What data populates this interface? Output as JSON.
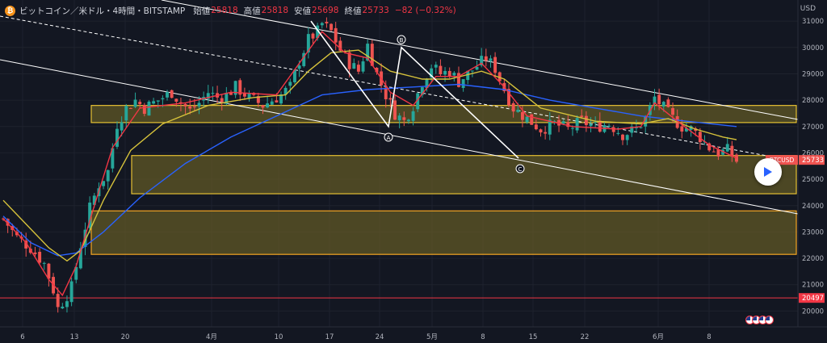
{
  "header": {
    "coin_symbol": "₿",
    "symbol": "ビットコイン／米ドル・4時間・BITSTAMP",
    "open_label": "始値",
    "open": "25818",
    "high_label": "高値",
    "high": "25818",
    "low_label": "安値",
    "low": "25698",
    "close_label": "終値",
    "close": "25733",
    "change": "−82 (−0.32%)"
  },
  "axis_unit": "USD",
  "colors": {
    "background": "#131722",
    "bullish": "#26a69a",
    "bearish": "#ef5350",
    "ma_fast": "#f23645",
    "ma_mid": "#d6c23b",
    "ma_slow": "#2962ff",
    "zone_fill": "#6b6127",
    "zone_border": "#e5c033",
    "zone_low_border": "#f5a623",
    "support_line": "#f23645",
    "trend_lines": "#ffffff"
  },
  "chart_data": {
    "type": "candlestick",
    "x_tick_labels": [
      "6",
      "13",
      "20",
      "4月",
      "10",
      "17",
      "24",
      "5月",
      "8",
      "15",
      "22",
      "6月",
      "8"
    ],
    "y_ticks": [
      20000,
      21000,
      22000,
      23000,
      24000,
      25000,
      26000,
      27000,
      28000,
      29000,
      30000,
      31000
    ],
    "ylim": [
      19400,
      31800
    ],
    "price_label": "25733",
    "symbol_tag": "BTCUSD",
    "support_label": "20497",
    "support_level": 20497,
    "wave_labels": [
      "A",
      "B",
      "C"
    ],
    "zones": [
      {
        "low": 27150,
        "high": 27800
      },
      {
        "low": 24450,
        "high": 25900
      },
      {
        "low": 22150,
        "high": 23800
      }
    ],
    "close_path": [
      [
        0,
        23500
      ],
      [
        3,
        22800
      ],
      [
        6,
        22400
      ],
      [
        9,
        21800
      ],
      [
        11,
        20800
      ],
      [
        12,
        20100
      ],
      [
        14,
        20600
      ],
      [
        15,
        20900
      ],
      [
        17,
        22500
      ],
      [
        19,
        23900
      ],
      [
        21,
        24800
      ],
      [
        23,
        25300
      ],
      [
        25,
        27100
      ],
      [
        27,
        27700
      ],
      [
        29,
        28000
      ],
      [
        31,
        27700
      ],
      [
        33,
        27900
      ],
      [
        35,
        28100
      ],
      [
        37,
        28300
      ],
      [
        39,
        27900
      ],
      [
        41,
        27600
      ],
      [
        43,
        27900
      ],
      [
        45,
        28300
      ],
      [
        47,
        28100
      ],
      [
        49,
        28200
      ],
      [
        51,
        28500
      ],
      [
        54,
        28100
      ],
      [
        57,
        27800
      ],
      [
        61,
        28200
      ],
      [
        63,
        28500
      ],
      [
        65,
        29500
      ],
      [
        67,
        30300
      ],
      [
        69,
        30600
      ],
      [
        70,
        30900
      ],
      [
        72,
        30600
      ],
      [
        74,
        29900
      ],
      [
        76,
        29400
      ],
      [
        78,
        29100
      ],
      [
        80,
        30100
      ],
      [
        82,
        29000
      ],
      [
        84,
        28200
      ],
      [
        86,
        27500
      ],
      [
        88,
        27200
      ],
      [
        90,
        27800
      ],
      [
        92,
        28700
      ],
      [
        94,
        29300
      ],
      [
        96,
        29000
      ],
      [
        98,
        29100
      ],
      [
        100,
        28700
      ],
      [
        102,
        29000
      ],
      [
        104,
        29300
      ],
      [
        106,
        29600
      ],
      [
        108,
        29200
      ],
      [
        110,
        28400
      ],
      [
        112,
        27700
      ],
      [
        115,
        27300
      ],
      [
        118,
        26900
      ],
      [
        121,
        27100
      ],
      [
        124,
        26900
      ],
      [
        127,
        27200
      ],
      [
        130,
        27000
      ],
      [
        133,
        27100
      ],
      [
        136,
        26700
      ],
      [
        139,
        26900
      ],
      [
        141,
        27300
      ],
      [
        143,
        28100
      ],
      [
        145,
        27700
      ],
      [
        147,
        27300
      ],
      [
        149,
        27000
      ],
      [
        151,
        26900
      ],
      [
        153,
        26600
      ],
      [
        155,
        26200
      ],
      [
        157,
        26000
      ],
      [
        159,
        26100
      ],
      [
        161,
        25700
      ]
    ],
    "ma_fast": [
      [
        0,
        23500
      ],
      [
        5,
        22600
      ],
      [
        10,
        21200
      ],
      [
        13,
        20600
      ],
      [
        16,
        21700
      ],
      [
        20,
        24000
      ],
      [
        24,
        26200
      ],
      [
        30,
        27700
      ],
      [
        40,
        27900
      ],
      [
        50,
        28300
      ],
      [
        60,
        28200
      ],
      [
        65,
        29400
      ],
      [
        70,
        30600
      ],
      [
        75,
        29800
      ],
      [
        80,
        29600
      ],
      [
        85,
        28300
      ],
      [
        90,
        27800
      ],
      [
        95,
        28900
      ],
      [
        100,
        28900
      ],
      [
        105,
        29400
      ],
      [
        110,
        28500
      ],
      [
        115,
        27400
      ],
      [
        125,
        27000
      ],
      [
        135,
        26900
      ],
      [
        140,
        27000
      ],
      [
        143,
        27900
      ],
      [
        148,
        27200
      ],
      [
        155,
        26300
      ],
      [
        161,
        25800
      ]
    ],
    "ma_mid": [
      [
        0,
        24200
      ],
      [
        5,
        23300
      ],
      [
        10,
        22400
      ],
      [
        14,
        21900
      ],
      [
        17,
        22300
      ],
      [
        22,
        24200
      ],
      [
        28,
        26100
      ],
      [
        35,
        27100
      ],
      [
        45,
        27800
      ],
      [
        55,
        28100
      ],
      [
        62,
        28200
      ],
      [
        67,
        29100
      ],
      [
        72,
        29800
      ],
      [
        78,
        29900
      ],
      [
        85,
        29100
      ],
      [
        92,
        28800
      ],
      [
        98,
        28800
      ],
      [
        105,
        29100
      ],
      [
        110,
        28800
      ],
      [
        118,
        27700
      ],
      [
        130,
        27200
      ],
      [
        140,
        27100
      ],
      [
        146,
        27300
      ],
      [
        152,
        26900
      ],
      [
        158,
        26600
      ],
      [
        161,
        26500
      ]
    ],
    "ma_slow": [
      [
        0,
        23600
      ],
      [
        6,
        22600
      ],
      [
        12,
        22100
      ],
      [
        16,
        22200
      ],
      [
        22,
        23000
      ],
      [
        30,
        24300
      ],
      [
        40,
        25600
      ],
      [
        50,
        26600
      ],
      [
        60,
        27400
      ],
      [
        70,
        28200
      ],
      [
        80,
        28400
      ],
      [
        90,
        28500
      ],
      [
        100,
        28600
      ],
      [
        110,
        28400
      ],
      [
        120,
        28000
      ],
      [
        130,
        27700
      ],
      [
        140,
        27400
      ],
      [
        150,
        27200
      ],
      [
        161,
        27000
      ]
    ]
  }
}
